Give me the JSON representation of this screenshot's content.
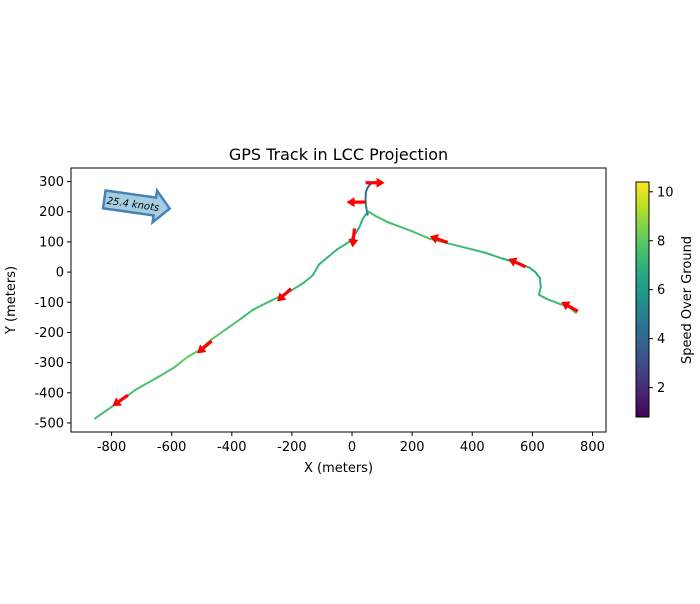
{
  "chart_data": {
    "type": "line",
    "title": "GPS Track in LCC Projection",
    "xlabel": "X (meters)",
    "ylabel": "Y (meters)",
    "xlim": [
      -935,
      845
    ],
    "ylim": [
      -530,
      345
    ],
    "xticks": [
      -800,
      -600,
      -400,
      -200,
      0,
      200,
      400,
      600,
      800
    ],
    "yticks": [
      -500,
      -400,
      -300,
      -200,
      -100,
      0,
      100,
      200,
      300
    ],
    "colorbar": {
      "label": "Speed Over Ground",
      "range": [
        0.8,
        10.4
      ],
      "ticks": [
        2,
        4,
        6,
        8,
        10
      ],
      "colormap": "viridis"
    },
    "annotation": {
      "text": "25.4 knots",
      "x": -720,
      "y": 225
    },
    "track": {
      "x": [
        -855,
        -790,
        -720,
        -640,
        -590,
        -565,
        -545,
        -510,
        -470,
        -420,
        -370,
        -330,
        -300,
        -270,
        -240,
        -200,
        -160,
        -130,
        -110,
        -80,
        -50,
        -10,
        10,
        25,
        35,
        45,
        55,
        80,
        120,
        200,
        260,
        320,
        380,
        440,
        500,
        550,
        590,
        610,
        625,
        628,
        622,
        650,
        690,
        720,
        745
      ],
      "y": [
        -485,
        -440,
        -390,
        -345,
        -315,
        -295,
        -280,
        -260,
        -225,
        -190,
        -155,
        -125,
        -110,
        -95,
        -80,
        -60,
        -35,
        -10,
        25,
        50,
        75,
        100,
        125,
        150,
        175,
        190,
        200,
        185,
        165,
        135,
        110,
        95,
        80,
        65,
        45,
        30,
        15,
        0,
        -20,
        -50,
        -75,
        -90,
        -105,
        -115,
        -135
      ],
      "speed": [
        7.5,
        7.5,
        7.6,
        7.6,
        7.5,
        8.1,
        8.3,
        7.6,
        7.8,
        7.9,
        7.6,
        7.4,
        7.5,
        7.2,
        7.4,
        7.3,
        7.4,
        7.2,
        7.0,
        7.2,
        7.1,
        7.0,
        6.6,
        6.8,
        7.0,
        7.2,
        7.4,
        7.6,
        7.4,
        7.5,
        7.9,
        7.4,
        7.3,
        7.4,
        6.9,
        6.7,
        7.0,
        6.7,
        6.9,
        7.2,
        7.1,
        7.2,
        7.4,
        7.3,
        7.6
      ]
    },
    "spur": {
      "x": [
        52,
        47,
        45,
        46,
        52,
        58,
        63
      ],
      "y": [
        190,
        215,
        240,
        265,
        280,
        288,
        293
      ],
      "speed": [
        5.5,
        5.2,
        4.8,
        4.4,
        4.1,
        3.8,
        3.6
      ]
    },
    "arrows": [
      {
        "x": -770,
        "y": -425,
        "dx": -1,
        "dy": -0.7
      },
      {
        "x": -490,
        "y": -248,
        "dx": -1,
        "dy": -0.85
      },
      {
        "x": -225,
        "y": -75,
        "dx": -1,
        "dy": -0.9
      },
      {
        "x": 5,
        "y": 115,
        "dx": -0.1,
        "dy": -1
      },
      {
        "x": 290,
        "y": 108,
        "dx": -1,
        "dy": 0.35
      },
      {
        "x": 550,
        "y": 30,
        "dx": -1,
        "dy": 0.45
      },
      {
        "x": 725,
        "y": -115,
        "dx": -1,
        "dy": 0.55
      },
      {
        "x": 15,
        "y": 232,
        "dx": -1,
        "dy": 0
      },
      {
        "x": 75,
        "y": 296,
        "dx": 1,
        "dy": 0
      }
    ]
  }
}
